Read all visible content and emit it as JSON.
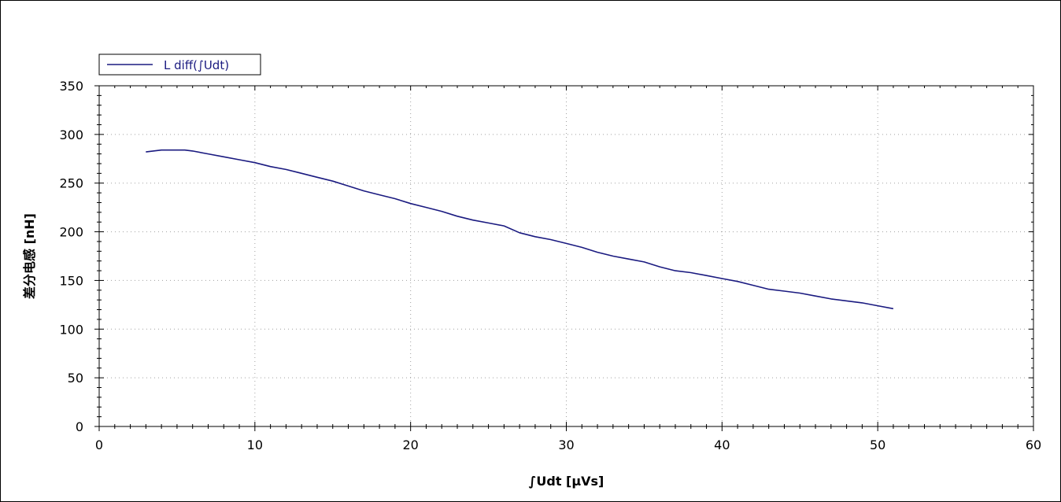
{
  "chart_data": {
    "type": "line",
    "title": "",
    "xlabel": "∫Udt [µVs]",
    "ylabel": "差分电感 [nH]",
    "xlim": [
      0,
      60
    ],
    "ylim": [
      0,
      350
    ],
    "x_ticks": [
      0,
      10,
      20,
      30,
      40,
      50,
      60
    ],
    "y_ticks": [
      0,
      50,
      100,
      150,
      200,
      250,
      300,
      350
    ],
    "grid": true,
    "legend_position": "top-left",
    "series_color": "#1a1a80",
    "series": [
      {
        "name": "L diff(∫Udt)",
        "x": [
          3,
          4,
          5,
          5.5,
          6,
          7,
          8,
          9,
          10,
          11,
          12,
          13,
          14,
          15,
          16,
          17,
          18,
          19,
          20,
          21,
          22,
          23,
          24,
          25,
          26,
          27,
          28,
          29,
          30,
          31,
          32,
          33,
          34,
          35,
          36,
          37,
          38,
          39,
          40,
          41,
          42,
          43,
          44,
          45,
          46,
          47,
          48,
          49,
          50,
          51
        ],
        "values": [
          282,
          284,
          284,
          284,
          283,
          280,
          277,
          274,
          271,
          267,
          264,
          260,
          256,
          252,
          247,
          242,
          238,
          234,
          229,
          225,
          221,
          216,
          212,
          209,
          206,
          199,
          195,
          192,
          188,
          184,
          179,
          175,
          172,
          169,
          164,
          160,
          158,
          155,
          152,
          149,
          145,
          141,
          139,
          137,
          134,
          131,
          129,
          127,
          124,
          121
        ]
      }
    ]
  }
}
